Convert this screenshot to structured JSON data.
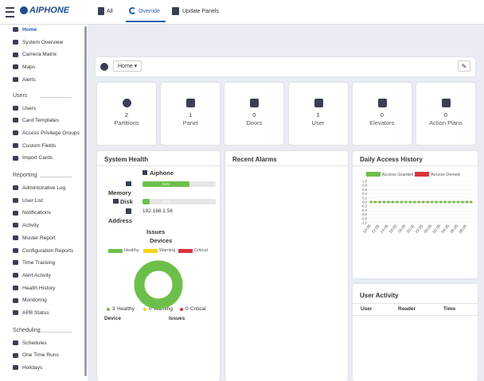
{
  "header": {
    "logo": "AIPHONE",
    "nav": [
      "All",
      "Override",
      "Update Panels"
    ]
  },
  "sidebar": {
    "items": [
      "Home",
      "System Overview",
      "Camera Matrix",
      "Maps",
      "Alerts"
    ],
    "sections": [
      {
        "title": "Users",
        "items": [
          "Users",
          "Card Templates",
          "Access Privilege Groups",
          "Custom Fields",
          "Import Cards"
        ]
      },
      {
        "title": "Reporting",
        "items": [
          "Administrative Log",
          "User List",
          "Notifications",
          "Activity",
          "Muster Report",
          "Configuration Reports",
          "Time Tracking",
          "Alert Activity",
          "Health History",
          "Monitoring",
          "APB Status"
        ]
      },
      {
        "title": "Scheduling",
        "items": [
          "Schedules",
          "One Time Runs",
          "Holidays"
        ]
      }
    ]
  },
  "breadcrumb": "Home",
  "stats": [
    {
      "value": 2,
      "label": "Partitions"
    },
    {
      "value": 1,
      "label": "Panel"
    },
    {
      "value": 0,
      "label": "Doors"
    },
    {
      "value": 1,
      "label": "User"
    },
    {
      "value": 0,
      "label": "Elevators"
    },
    {
      "value": 0,
      "label": "Action Plans"
    }
  ],
  "system_health": {
    "title": "System Health",
    "panel": "Aiphone",
    "resources": [
      {
        "label": "Memory",
        "value": 64,
        "value_label": "64%"
      },
      {
        "label": "Disk",
        "value": 10,
        "value_label": "10%"
      }
    ],
    "address_label": "Address",
    "address": "192.168.1.56",
    "issues": "Issues",
    "devices_title": "Devices",
    "devices": [
      {
        "name": "Healthy",
        "count": 3,
        "color": "#6cc04a"
      },
      {
        "name": "Warning",
        "count": 0,
        "color": "#f2d31b"
      },
      {
        "name": "Critical",
        "count": 0,
        "color": "#d9343f"
      }
    ],
    "table_headers": [
      "Device",
      "Issues"
    ]
  },
  "recent_alarms": {
    "title": "Recent Alarms"
  },
  "chart_data": {
    "type": "line",
    "title": "Daily Access History",
    "categories": [
      "10:05",
      null,
      "12:05",
      null,
      "14:05",
      null,
      "16:05",
      null,
      "18:05",
      null,
      "20:05",
      null,
      "22:05",
      null,
      "00:05",
      null,
      "02:05",
      null,
      "04:05",
      null,
      "06:05",
      null,
      "08:05",
      null
    ],
    "series": [
      {
        "name": "Access Granted",
        "color": "#6cc04a",
        "values": [
          0,
          0,
          0,
          0,
          0,
          0,
          0,
          0,
          0,
          0,
          0,
          0,
          0,
          0,
          0,
          0,
          0,
          0,
          0,
          0,
          0,
          0,
          0,
          0
        ]
      },
      {
        "name": "Access Denied",
        "color": "#d9343f",
        "values": [
          0,
          0,
          0,
          0,
          0,
          0,
          0,
          0,
          0,
          0,
          0,
          0,
          0,
          0,
          0,
          0,
          0,
          0,
          0,
          0,
          0,
          0,
          0,
          0
        ]
      }
    ],
    "ylim": [
      -1,
      1
    ],
    "yticks": [
      {
        "value": 1,
        "label": "1.0"
      },
      0.8,
      0.6,
      0.4,
      0.2,
      {
        "value": 0,
        "label": "0.0"
      },
      -0.2,
      -0.4,
      -0.6,
      -0.8,
      {
        "value": -1,
        "label": "-1.0"
      }
    ],
    "grid": true
  },
  "user_activity": {
    "title": "User Activity",
    "headers": [
      "User",
      "Reader",
      "Time"
    ]
  }
}
